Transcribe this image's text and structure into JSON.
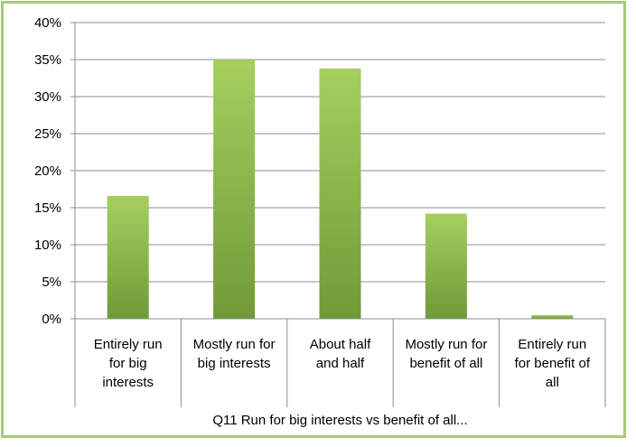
{
  "chart_data": {
    "type": "bar",
    "categories": [
      [
        "Entirely run",
        "for big",
        "interests"
      ],
      [
        "Mostly run for",
        "big interests"
      ],
      [
        "About half",
        "and half"
      ],
      [
        "Mostly run for",
        "benefit of all"
      ],
      [
        "Entirely run",
        "for benefit of",
        "all"
      ]
    ],
    "values": [
      0.166,
      0.35,
      0.338,
      0.142,
      0.005
    ],
    "xlabel": "Q11 Run for big interests vs benefit of all...",
    "ylabel": "",
    "ylim": [
      0,
      0.4
    ],
    "yticks": [
      "0%",
      "5%",
      "10%",
      "15%",
      "20%",
      "25%",
      "30%",
      "35%",
      "40%"
    ],
    "grid": true,
    "legend": "none",
    "colors": {
      "bar_light": "#a6cf5f",
      "bar_dark": "#6f9a36",
      "border": "#a9c978",
      "grid": "#8c8c8c"
    }
  }
}
